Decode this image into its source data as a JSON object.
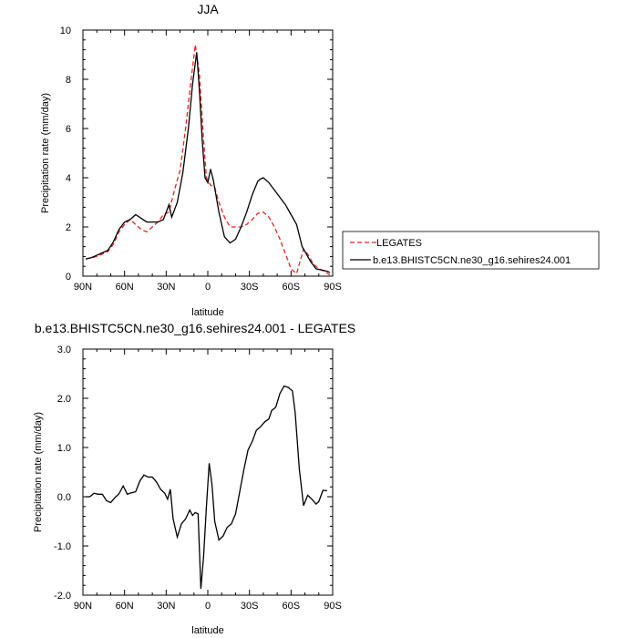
{
  "chart_data": [
    {
      "type": "line",
      "title": "JJA",
      "xlabel": "latitude",
      "ylabel": "Precipitation rate (mm/day)",
      "xlim": [
        90,
        -90
      ],
      "ylim": [
        0,
        10
      ],
      "x_ticks": [
        90,
        60,
        30,
        0,
        -30,
        -60,
        -90
      ],
      "x_tick_labels": [
        "90N",
        "60N",
        "30N",
        "0",
        "30S",
        "60S",
        "90S"
      ],
      "y_ticks": [
        0,
        2,
        4,
        6,
        8,
        10
      ],
      "y_tick_labels": [
        "0",
        "2",
        "4",
        "6",
        "8",
        "10"
      ],
      "legend": {
        "placement": "right",
        "entries": [
          "LEGATES",
          "b.e13.BHISTC5CN.ne30_g16.sehires24.001"
        ]
      },
      "series": [
        {
          "name": "LEGATES",
          "color": "#e8251f",
          "dash": "dashed",
          "points": [
            [
              88,
              0.7
            ],
            [
              84,
              0.75
            ],
            [
              80,
              0.8
            ],
            [
              76,
              0.9
            ],
            [
              72,
              1.0
            ],
            [
              68,
              1.3
            ],
            [
              64,
              1.8
            ],
            [
              60,
              2.1
            ],
            [
              56,
              2.3
            ],
            [
              52,
              2.1
            ],
            [
              48,
              1.9
            ],
            [
              44,
              1.8
            ],
            [
              40,
              2.0
            ],
            [
              36,
              2.2
            ],
            [
              32,
              2.5
            ],
            [
              28,
              2.6
            ],
            [
              24,
              3.5
            ],
            [
              20,
              4.3
            ],
            [
              16,
              6.0
            ],
            [
              12,
              8.0
            ],
            [
              9,
              9.4
            ],
            [
              6,
              8.2
            ],
            [
              3,
              5.5
            ],
            [
              1,
              4.0
            ],
            [
              -2,
              3.7
            ],
            [
              -5,
              3.6
            ],
            [
              -8,
              3.0
            ],
            [
              -12,
              2.4
            ],
            [
              -16,
              2.0
            ],
            [
              -20,
              2.0
            ],
            [
              -24,
              2.0
            ],
            [
              -28,
              2.1
            ],
            [
              -32,
              2.3
            ],
            [
              -36,
              2.55
            ],
            [
              -40,
              2.6
            ],
            [
              -44,
              2.4
            ],
            [
              -48,
              2.0
            ],
            [
              -52,
              1.5
            ],
            [
              -56,
              0.9
            ],
            [
              -60,
              0.3
            ],
            [
              -64,
              0.1
            ],
            [
              -66,
              0.5
            ],
            [
              -69,
              1.1
            ],
            [
              -72,
              0.9
            ],
            [
              -76,
              0.5
            ],
            [
              -80,
              0.3
            ],
            [
              -84,
              0.2
            ],
            [
              -88,
              0.05
            ]
          ]
        },
        {
          "name": "b.e13.BHISTC5CN.ne30_g16.sehires24.001",
          "color": "#000000",
          "dash": "solid",
          "points": [
            [
              88,
              0.7
            ],
            [
              84,
              0.75
            ],
            [
              80,
              0.85
            ],
            [
              76,
              0.95
            ],
            [
              72,
              1.05
            ],
            [
              68,
              1.4
            ],
            [
              64,
              1.9
            ],
            [
              60,
              2.2
            ],
            [
              56,
              2.3
            ],
            [
              52,
              2.5
            ],
            [
              48,
              2.35
            ],
            [
              44,
              2.2
            ],
            [
              40,
              2.2
            ],
            [
              36,
              2.2
            ],
            [
              32,
              2.3
            ],
            [
              28,
              2.9
            ],
            [
              26,
              2.4
            ],
            [
              22,
              3.0
            ],
            [
              18,
              4.2
            ],
            [
              14,
              6.0
            ],
            [
              11,
              7.8
            ],
            [
              8,
              9.1
            ],
            [
              6,
              7.5
            ],
            [
              4,
              5.5
            ],
            [
              2,
              4.0
            ],
            [
              0,
              3.8
            ],
            [
              -2,
              4.35
            ],
            [
              -4,
              3.9
            ],
            [
              -8,
              2.6
            ],
            [
              -12,
              1.6
            ],
            [
              -16,
              1.35
            ],
            [
              -20,
              1.5
            ],
            [
              -24,
              2.0
            ],
            [
              -28,
              2.6
            ],
            [
              -32,
              3.3
            ],
            [
              -36,
              3.85
            ],
            [
              -38,
              3.95
            ],
            [
              -40,
              4.0
            ],
            [
              -44,
              3.8
            ],
            [
              -48,
              3.5
            ],
            [
              -52,
              3.2
            ],
            [
              -56,
              2.9
            ],
            [
              -60,
              2.5
            ],
            [
              -64,
              2.1
            ],
            [
              -68,
              1.2
            ],
            [
              -71,
              0.9
            ],
            [
              -74,
              0.6
            ],
            [
              -78,
              0.3
            ],
            [
              -82,
              0.25
            ],
            [
              -86,
              0.2
            ],
            [
              -88,
              0.15
            ]
          ]
        }
      ]
    },
    {
      "type": "line",
      "title": "b.e13.BHISTC5CN.ne30_g16.sehires24.001 - LEGATES",
      "xlabel": "latitude",
      "ylabel": "Precipitation rate (mm/day)",
      "xlim": [
        90,
        -90
      ],
      "ylim": [
        -2.0,
        3.0
      ],
      "x_ticks": [
        90,
        60,
        30,
        0,
        -30,
        -60,
        -90
      ],
      "x_tick_labels": [
        "90N",
        "60N",
        "30N",
        "0",
        "30S",
        "60S",
        "90S"
      ],
      "y_ticks": [
        -2,
        -1,
        0,
        1,
        2,
        3
      ],
      "y_tick_labels": [
        "-2.0",
        "-1.0",
        "0.0",
        "1.0",
        "2.0",
        "3.0"
      ],
      "series": [
        {
          "color": "#000000",
          "dash": "solid",
          "points": [
            [
              88,
              0.0
            ],
            [
              85,
              0.0
            ],
            [
              82,
              0.07
            ],
            [
              79,
              0.05
            ],
            [
              76,
              0.05
            ],
            [
              73,
              -0.08
            ],
            [
              70,
              -0.12
            ],
            [
              67,
              -0.02
            ],
            [
              64,
              0.06
            ],
            [
              61,
              0.22
            ],
            [
              58,
              0.05
            ],
            [
              55,
              0.08
            ],
            [
              52,
              0.1
            ],
            [
              49,
              0.32
            ],
            [
              46,
              0.44
            ],
            [
              43,
              0.4
            ],
            [
              40,
              0.4
            ],
            [
              37,
              0.3
            ],
            [
              34,
              0.15
            ],
            [
              31,
              0.07
            ],
            [
              29,
              -0.05
            ],
            [
              27,
              0.15
            ],
            [
              25,
              -0.45
            ],
            [
              22,
              -0.82
            ],
            [
              19,
              -0.55
            ],
            [
              16,
              -0.45
            ],
            [
              13,
              -0.27
            ],
            [
              11,
              -0.38
            ],
            [
              9,
              -0.32
            ],
            [
              7,
              -0.35
            ],
            [
              5,
              -1.87
            ],
            [
              3,
              -1.2
            ],
            [
              1,
              -0.2
            ],
            [
              -1,
              0.68
            ],
            [
              -3,
              0.25
            ],
            [
              -5,
              -0.5
            ],
            [
              -8,
              -0.88
            ],
            [
              -11,
              -0.8
            ],
            [
              -14,
              -0.62
            ],
            [
              -17,
              -0.55
            ],
            [
              -20,
              -0.35
            ],
            [
              -23,
              0.1
            ],
            [
              -26,
              0.55
            ],
            [
              -29,
              0.95
            ],
            [
              -32,
              1.12
            ],
            [
              -35,
              1.35
            ],
            [
              -38,
              1.42
            ],
            [
              -41,
              1.52
            ],
            [
              -44,
              1.58
            ],
            [
              -46,
              1.75
            ],
            [
              -49,
              1.82
            ],
            [
              -52,
              2.1
            ],
            [
              -55,
              2.25
            ],
            [
              -58,
              2.22
            ],
            [
              -61,
              2.15
            ],
            [
              -63,
              1.7
            ],
            [
              -66,
              0.55
            ],
            [
              -69,
              -0.18
            ],
            [
              -72,
              0.03
            ],
            [
              -75,
              -0.05
            ],
            [
              -78,
              -0.15
            ],
            [
              -80,
              -0.1
            ],
            [
              -83,
              0.13
            ],
            [
              -86,
              0.12
            ]
          ]
        }
      ]
    }
  ]
}
